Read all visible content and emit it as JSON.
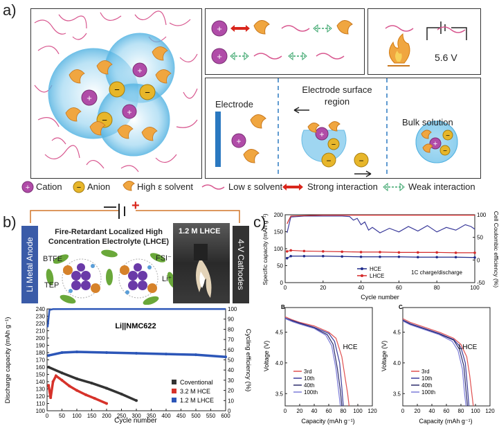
{
  "panel_a": {
    "letter": "a)",
    "voltage": "5.6 V",
    "electrode": "Electrode",
    "surface_region": "Electrode surface region",
    "bulk": "Bulk solution",
    "legend": {
      "cation": "Cation",
      "anion": "Anion",
      "high_solvent": "High ε solvent",
      "low_solvent": "Low ε solvent",
      "strong": "Strong interaction",
      "weak": "Weak interaction"
    },
    "colors": {
      "cation": "#b04ca8",
      "anion": "#e7b62a",
      "solvent_high": "#f0a640",
      "solvent_low": "#d8578f",
      "strong": "#d9261c",
      "weak": "#3aa56b",
      "electrode": "#2a78c0"
    }
  },
  "panel_b": {
    "letter": "b)",
    "anode": "Li Metal Anode",
    "cathode": "4-V Cathodes",
    "title": "Fire-Retardant Localized High Concentration Electrolyte (LHCE)",
    "btfe": "BTFE",
    "fsi": "FSI⁻",
    "tep": "TEP",
    "li": "Li⁺",
    "photo_label": "1.2 M LHCE",
    "minus": "—",
    "plus": "+"
  },
  "panel_c": {
    "letter": "c)"
  },
  "chart_data": [
    {
      "type": "scatter",
      "title": "Li||NMC622",
      "xlabel": "Cycle number",
      "ylabel": "Discharge capacity (mAh g⁻¹)",
      "y2label": "Cycling efficiency (%)",
      "xlim": [
        0,
        600
      ],
      "ylim": [
        100,
        240
      ],
      "y2lim": [
        0,
        100
      ],
      "xticks": [
        0,
        50,
        100,
        150,
        200,
        250,
        300,
        350,
        400,
        450,
        500,
        550,
        600
      ],
      "yticks": [
        100,
        110,
        120,
        130,
        140,
        150,
        160,
        170,
        180,
        190,
        200,
        210,
        220,
        230,
        240
      ],
      "y2ticks": [
        0,
        10,
        20,
        30,
        40,
        50,
        60,
        70,
        80,
        90,
        100
      ],
      "legend_position": "bottom-right",
      "series": [
        {
          "name": "Coventional",
          "color": "#333333",
          "x": [
            5,
            50,
            100,
            150,
            200,
            250,
            300
          ],
          "y": [
            160,
            152,
            144,
            138,
            131,
            123,
            114
          ]
        },
        {
          "name": "3.2 M HCE",
          "color": "#d6322a",
          "x": [
            5,
            12,
            20,
            30,
            50,
            75,
            100,
            130,
            160,
            200
          ],
          "y": [
            135,
            118,
            140,
            148,
            142,
            134,
            128,
            122,
            117,
            110
          ]
        },
        {
          "name": "1.2 M LHCE",
          "color": "#2c56b8",
          "x": [
            5,
            50,
            100,
            200,
            300,
            400,
            500,
            600
          ],
          "y": [
            176,
            180,
            181,
            180,
            179,
            178,
            177,
            174
          ]
        }
      ],
      "efficiency": {
        "color": "#2c56b8",
        "x": [
          2,
          8,
          20,
          100,
          300,
          600
        ],
        "y": [
          82,
          99,
          99.8,
          99.9,
          99.9,
          99.9
        ]
      }
    },
    {
      "type": "scatter",
      "xlabel": "Cycle number",
      "ylabel": "Specific capacity (mAh g⁻¹)",
      "y2label": "Cell Coulombic efficiency (%)",
      "xlim": [
        0,
        100
      ],
      "ylim": [
        0,
        200
      ],
      "y2lim": [
        -50,
        100
      ],
      "xticks": [
        0,
        20,
        40,
        60,
        80,
        100
      ],
      "yticks": [
        0,
        50,
        100,
        150,
        200
      ],
      "y2ticks": [
        -50,
        0,
        50,
        100
      ],
      "annotation": "1C charge/discharge",
      "legend_position": "bottom-center",
      "series": [
        {
          "name": "HCE",
          "color": "#1f2a8a",
          "x": [
            1,
            3,
            10,
            20,
            30,
            40,
            50,
            60,
            70,
            80,
            90,
            100
          ],
          "y": [
            72,
            78,
            78,
            78,
            77,
            76,
            76,
            76,
            75,
            75,
            75,
            74
          ]
        },
        {
          "name": "LHCE",
          "color": "#d42a2a",
          "x": [
            1,
            3,
            10,
            20,
            30,
            40,
            50,
            60,
            70,
            80,
            90,
            100
          ],
          "y": [
            92,
            95,
            93,
            92,
            91,
            90,
            90,
            89,
            89,
            89,
            88,
            88
          ]
        }
      ],
      "efficiency_hce": {
        "color": "#3a3a9a",
        "x": [
          1,
          3,
          10,
          20,
          30,
          34,
          36,
          38,
          40,
          42,
          44,
          46,
          50,
          55,
          60,
          65,
          70,
          75,
          80,
          85,
          90,
          95,
          98,
          100
        ],
        "y": [
          60,
          95,
          97,
          97,
          97,
          96,
          88,
          92,
          78,
          84,
          66,
          72,
          60,
          70,
          62,
          74,
          64,
          76,
          62,
          72,
          66,
          78,
          74,
          68
        ]
      },
      "efficiency_lhce": {
        "color": "#d42a2a",
        "x": [
          1,
          3,
          10,
          20,
          40,
          60,
          80,
          100
        ],
        "y": [
          80,
          97,
          98,
          99,
          99,
          99,
          99,
          99
        ]
      }
    },
    {
      "type": "line",
      "panel": "B",
      "label": "HCE",
      "xlabel": "Capacity (mAh g⁻¹)",
      "ylabel": "Voltage (V)",
      "xlim": [
        0,
        120
      ],
      "ylim": [
        3.3,
        4.9
      ],
      "xticks": [
        0,
        20,
        40,
        60,
        80,
        100,
        120
      ],
      "yticks": [
        3.5,
        4.0,
        4.5
      ],
      "series": [
        {
          "name": "3rd",
          "color": "#e05050",
          "x": [
            0,
            10,
            20,
            40,
            60,
            70,
            78,
            82,
            86,
            88
          ],
          "y": [
            4.75,
            4.7,
            4.66,
            4.6,
            4.5,
            4.4,
            4.1,
            3.8,
            3.5,
            3.3
          ]
        },
        {
          "name": "10th",
          "color": "#3a3a9a",
          "x": [
            0,
            10,
            20,
            40,
            60,
            68,
            75,
            78,
            80
          ],
          "y": [
            4.73,
            4.69,
            4.65,
            4.58,
            4.48,
            4.35,
            4.0,
            3.6,
            3.3
          ]
        },
        {
          "name": "40th",
          "color": "#2a2a6a",
          "x": [
            0,
            10,
            20,
            40,
            58,
            66,
            72,
            76,
            78
          ],
          "y": [
            4.72,
            4.68,
            4.64,
            4.57,
            4.46,
            4.3,
            3.9,
            3.55,
            3.3
          ]
        },
        {
          "name": "100th",
          "color": "#7b7bd8",
          "x": [
            0,
            10,
            20,
            40,
            56,
            64,
            70,
            74,
            76
          ],
          "y": [
            4.72,
            4.67,
            4.63,
            4.56,
            4.45,
            4.28,
            3.9,
            3.5,
            3.3
          ]
        }
      ]
    },
    {
      "type": "line",
      "panel": "C",
      "label": "LHCE",
      "xlabel": "Capacity (mAh g⁻¹)",
      "ylabel": "Voltage (V)",
      "xlim": [
        0,
        120
      ],
      "ylim": [
        3.3,
        4.9
      ],
      "xticks": [
        0,
        20,
        40,
        60,
        80,
        100,
        120
      ],
      "yticks": [
        3.5,
        4.0,
        4.5
      ],
      "series": [
        {
          "name": "3rd",
          "color": "#e05050",
          "x": [
            0,
            10,
            30,
            50,
            70,
            80,
            88,
            92,
            95,
            97
          ],
          "y": [
            4.72,
            4.66,
            4.58,
            4.5,
            4.4,
            4.3,
            4.1,
            3.8,
            3.5,
            3.3
          ]
        },
        {
          "name": "10th",
          "color": "#3a3a9a",
          "x": [
            0,
            10,
            30,
            50,
            70,
            80,
            86,
            89,
            91
          ],
          "y": [
            4.7,
            4.64,
            4.56,
            4.48,
            4.38,
            4.25,
            4.0,
            3.6,
            3.3
          ]
        },
        {
          "name": "40th",
          "color": "#2a2a6a",
          "x": [
            0,
            10,
            30,
            50,
            70,
            78,
            84,
            87,
            89
          ],
          "y": [
            4.69,
            4.63,
            4.55,
            4.47,
            4.37,
            4.22,
            3.95,
            3.55,
            3.3
          ]
        },
        {
          "name": "100th",
          "color": "#7b7bd8",
          "x": [
            0,
            10,
            30,
            50,
            68,
            76,
            82,
            85,
            87
          ],
          "y": [
            4.68,
            4.62,
            4.54,
            4.46,
            4.35,
            4.2,
            3.9,
            3.5,
            3.3
          ]
        }
      ]
    }
  ]
}
